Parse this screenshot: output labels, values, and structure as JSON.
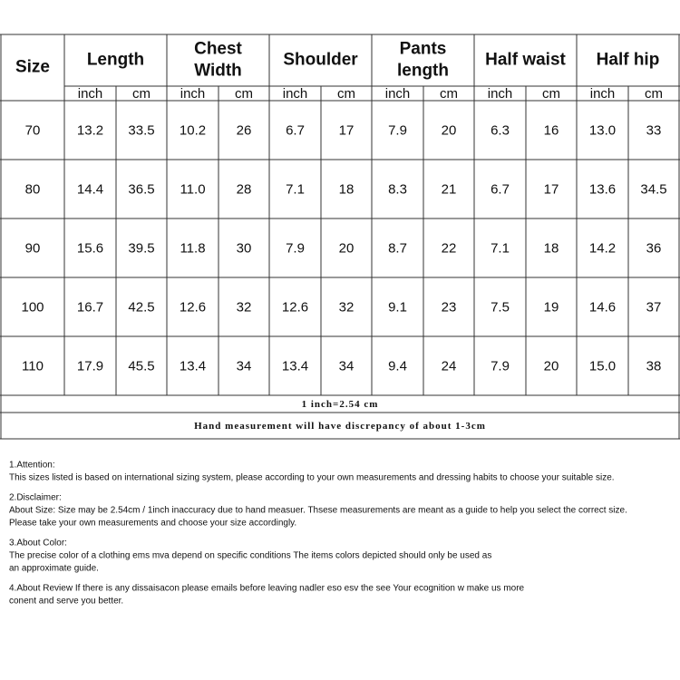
{
  "table": {
    "headers": [
      [
        "Size"
      ],
      [
        "Length"
      ],
      [
        "Chest",
        "Width"
      ],
      [
        "Shoulder"
      ],
      [
        "Pants",
        "length"
      ],
      [
        "Half waist"
      ],
      [
        "Half hip"
      ]
    ],
    "units": [
      "inch",
      "cm",
      "inch",
      "cm",
      "inch",
      "cm",
      "inch",
      "cm",
      "inch",
      "cm",
      "inch",
      "cm"
    ],
    "rows": [
      [
        "70",
        "13.2",
        "33.5",
        "10.2",
        "26",
        "6.7",
        "17",
        "7.9",
        "20",
        "6.3",
        "16",
        "13.0",
        "33"
      ],
      [
        "80",
        "14.4",
        "36.5",
        "11.0",
        "28",
        "7.1",
        "18",
        "8.3",
        "21",
        "6.7",
        "17",
        "13.6",
        "34.5"
      ],
      [
        "90",
        "15.6",
        "39.5",
        "11.8",
        "30",
        "7.9",
        "20",
        "8.7",
        "22",
        "7.1",
        "18",
        "14.2",
        "36"
      ],
      [
        "100",
        "16.7",
        "42.5",
        "12.6",
        "32",
        "12.6",
        "32",
        "9.1",
        "23",
        "7.5",
        "19",
        "14.6",
        "37"
      ],
      [
        "110",
        "17.9",
        "45.5",
        "13.4",
        "34",
        "13.4",
        "34",
        "9.4",
        "24",
        "7.9",
        "20",
        "15.0",
        "38"
      ]
    ],
    "footnotes": [
      "1 inch=2.54 cm",
      "Hand measurement will have discrepancy of about 1-3cm"
    ]
  },
  "notes": [
    [
      "1.Attention:",
      "This sizes listed is based on international sizing system, please according to your own measurements and dressing habits to choose your suitable size."
    ],
    [
      "2.Disclaimer:",
      "About Size: Size may be 2.54cm / 1inch inaccuracy due to hand measuer. Thsese measurements are meant as a guide to help you select the correct size.",
      "Please take your own measurements and choose your size accordingly."
    ],
    [
      "3.About Color:",
      "The precise color of a clothing ems mva depend on specific conditions The items colors depicted should only be used as",
      "an approximate guide."
    ],
    [
      "4.About Review If there is any dissaisacon please emails before leaving nadler eso esv the see Your ecognition w make us more",
      "conent and serve you better."
    ]
  ]
}
